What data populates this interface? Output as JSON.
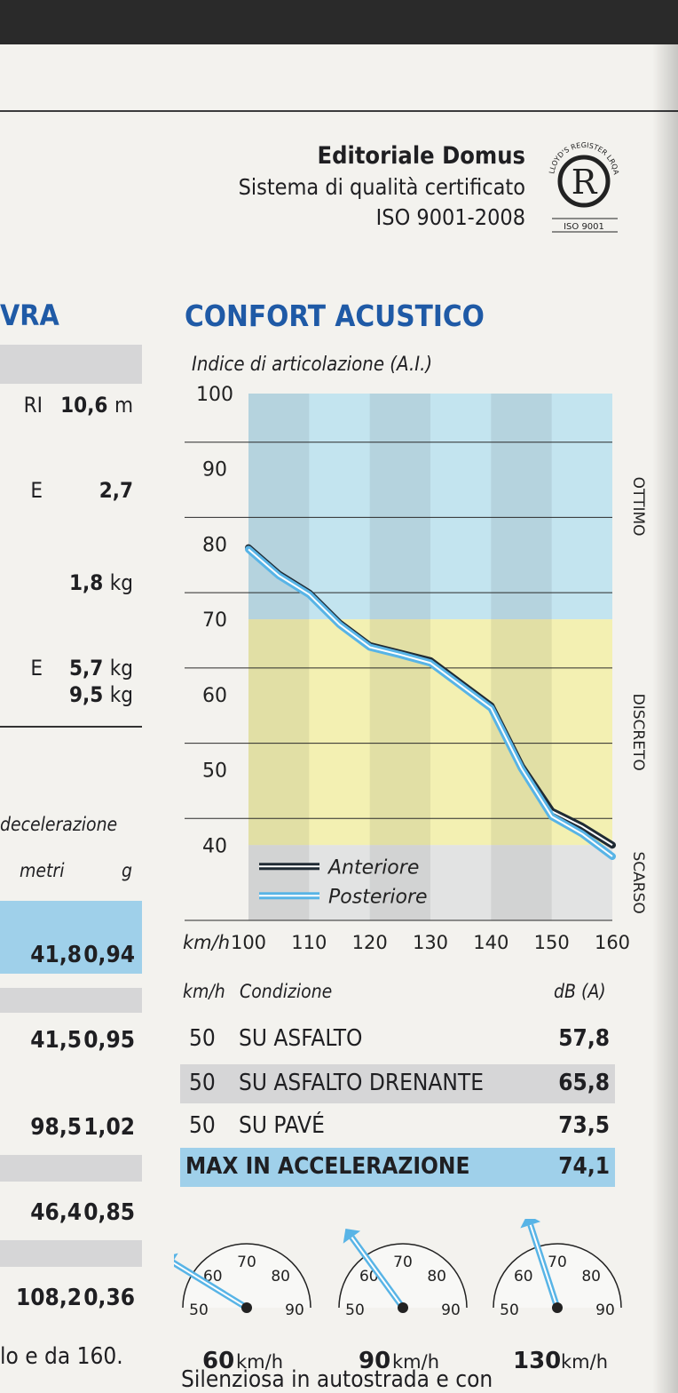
{
  "brand": {
    "name": "Editoriale Domus",
    "line": "Sistema di qualità certificato",
    "iso": "ISO 9001-2008",
    "seal_top": "LLOYD'S REGISTER LRQA",
    "seal_letter": "R",
    "seal_bottom": "ISO 9001"
  },
  "left_column": {
    "title": "VRA",
    "rows": [
      {
        "label": "RI",
        "value": "10,6",
        "unit": "m"
      },
      {
        "label": "E",
        "value": "2,7",
        "unit": ""
      },
      {
        "label": "",
        "value": "1,8",
        "unit": "kg"
      },
      {
        "label": "E",
        "value": "5,7",
        "unit": "kg"
      },
      {
        "label": "",
        "value": "9,5",
        "unit": "kg"
      }
    ],
    "decel_heading": "decelerazione",
    "col_metri": "metri",
    "col_g": "g",
    "decel_rows": [
      {
        "metri": "41,8",
        "g": "0,94"
      },
      {
        "metri": "41,5",
        "g": "0,95"
      },
      {
        "metri": "98,5",
        "g": "1,02"
      },
      {
        "metri": "46,4",
        "g": "0,85"
      },
      {
        "metri": "108,2",
        "g": "0,36"
      }
    ],
    "footer": "lo e da 160."
  },
  "chart_data": {
    "type": "line",
    "title": "CONFORT ACUSTICO",
    "ylabel": "Indice di articolazione (A.I.)",
    "xlabel": "km/h",
    "x": [
      100,
      110,
      120,
      130,
      140,
      150,
      160
    ],
    "x_ticks": [
      "100",
      "110",
      "120",
      "130",
      "140",
      "150",
      "160"
    ],
    "y_ticks": [
      "100",
      "90",
      "80",
      "70",
      "60",
      "50",
      "40"
    ],
    "ylim": [
      30,
      100
    ],
    "xlim": [
      100,
      160
    ],
    "zones": [
      "OTTIMO",
      "DISCRETO",
      "SCARSO"
    ],
    "series": [
      {
        "name": "Anteriore",
        "color": "#1f2a33",
        "x": [
          100,
          105,
          110,
          115,
          120,
          125,
          130,
          135,
          140,
          145,
          150,
          155,
          160
        ],
        "values": [
          79.5,
          76,
          73.5,
          69.5,
          66.5,
          65.5,
          64.5,
          61.5,
          58.5,
          50.5,
          44.5,
          42.5,
          40
        ]
      },
      {
        "name": "Posteriore",
        "color": "#58b4e6",
        "x": [
          100,
          105,
          110,
          115,
          120,
          125,
          130,
          135,
          140,
          145,
          150,
          155,
          160
        ],
        "values": [
          79.3,
          75.8,
          73.3,
          69.3,
          66.3,
          65.3,
          64.2,
          61.2,
          58.2,
          50.2,
          43.8,
          41.5,
          38.5
        ]
      }
    ],
    "grid": true,
    "legend": "bottom-left"
  },
  "table": {
    "head_kmh": "km/h",
    "head_cond": "Condizione",
    "head_db": "dB (A)",
    "rows": [
      {
        "kmh": "50",
        "condition": "SU ASFALTO",
        "db": "57,8"
      },
      {
        "kmh": "50",
        "condition": "SU ASFALTO DRENANTE",
        "db": "65,8"
      },
      {
        "kmh": "50",
        "condition": "SU PAVÉ",
        "db": "73,5"
      }
    ],
    "max_label": "MAX IN ACCELERAZIONE",
    "max_db": "74,1"
  },
  "gauges": [
    {
      "speed": "60",
      "unit": "km/h",
      "ticks": [
        "50",
        "60",
        "70",
        "80",
        "90"
      ],
      "needle_reading": 57
    },
    {
      "speed": "90",
      "unit": "km/h",
      "ticks": [
        "50",
        "60",
        "70",
        "80",
        "90"
      ],
      "needle_reading": 62
    },
    {
      "speed": "130",
      "unit": "km/h",
      "ticks": [
        "50",
        "60",
        "70",
        "80",
        "90"
      ],
      "needle_reading": 66
    }
  ],
  "bottom_text": "Silenziosa in autostrada e con",
  "colors": {
    "accent": "#1f5aa6",
    "gauge_needle": "#58b4e6",
    "zone_ottimo": "#c3e4ef",
    "zone_discreto": "#f3f0b2",
    "zone_scarso": "#e2e3e3"
  }
}
